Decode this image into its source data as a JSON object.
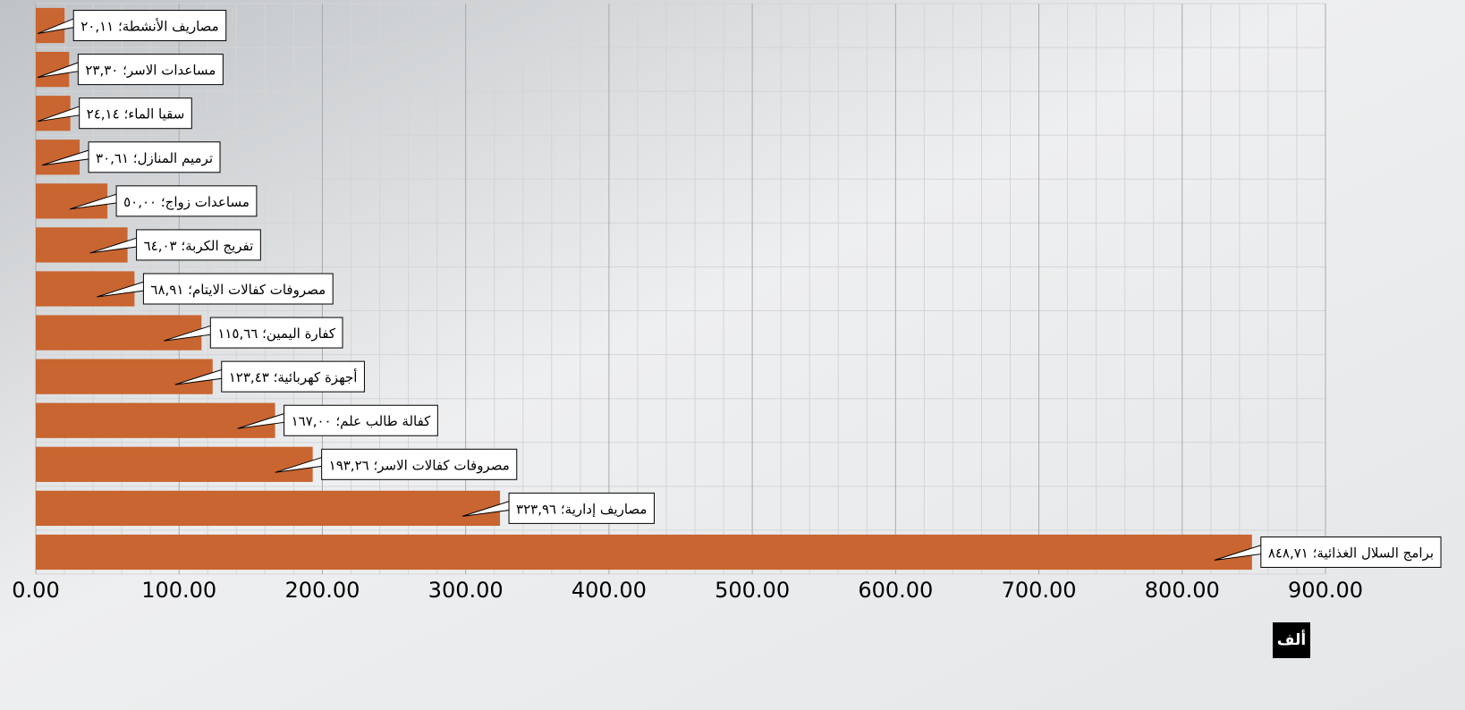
{
  "chart_data": {
    "type": "bar",
    "orientation": "horizontal",
    "categories": [
      "مصاريف الأنشطة",
      "مساعدات الاسر",
      "سقيا الماء",
      "ترميم المنازل",
      "مساعدات زواج",
      "تفريج الكربة",
      "مصروفات كفالات الايتام",
      "كفارة اليمين",
      "أجهزة كهربائية",
      "كفالة طالب علم",
      "مصروفات كفالات الاسر",
      "مصاريف إدارية",
      "برامج السلال الغذائية"
    ],
    "values": [
      20.11,
      23.3,
      24.14,
      30.61,
      50.0,
      64.03,
      68.91,
      115.66,
      123.43,
      167.0,
      193.26,
      323.96,
      848.71
    ],
    "value_labels": [
      "٢٠,١١",
      "٢٣,٣٠",
      "٢٤,١٤",
      "٣٠,٦١",
      "٥٠,٠٠",
      "٦٤,٠٣",
      "٦٨,٩١",
      "١١٥,٦٦",
      "١٢٣,٤٣",
      "١٦٧,٠٠",
      "١٩٣,٢٦",
      "٣٢٣,٩٦",
      "٨٤٨,٧١"
    ],
    "label_separator": "؛ ",
    "color": "#c96530",
    "xlim": [
      0,
      900
    ],
    "xticks": [
      {
        "value": 0,
        "label": "0.00"
      },
      {
        "value": 100,
        "label": "100.00"
      },
      {
        "value": 200,
        "label": "200.00"
      },
      {
        "value": 300,
        "label": "300.00"
      },
      {
        "value": 400,
        "label": "400.00"
      },
      {
        "value": 500,
        "label": "500.00"
      },
      {
        "value": 600,
        "label": "600.00"
      },
      {
        "value": 700,
        "label": "700.00"
      },
      {
        "value": 800,
        "label": "800.00"
      },
      {
        "value": 900,
        "label": "900.00"
      }
    ],
    "x_unit_label": "ألف",
    "grid": true,
    "minor_grid": true
  }
}
